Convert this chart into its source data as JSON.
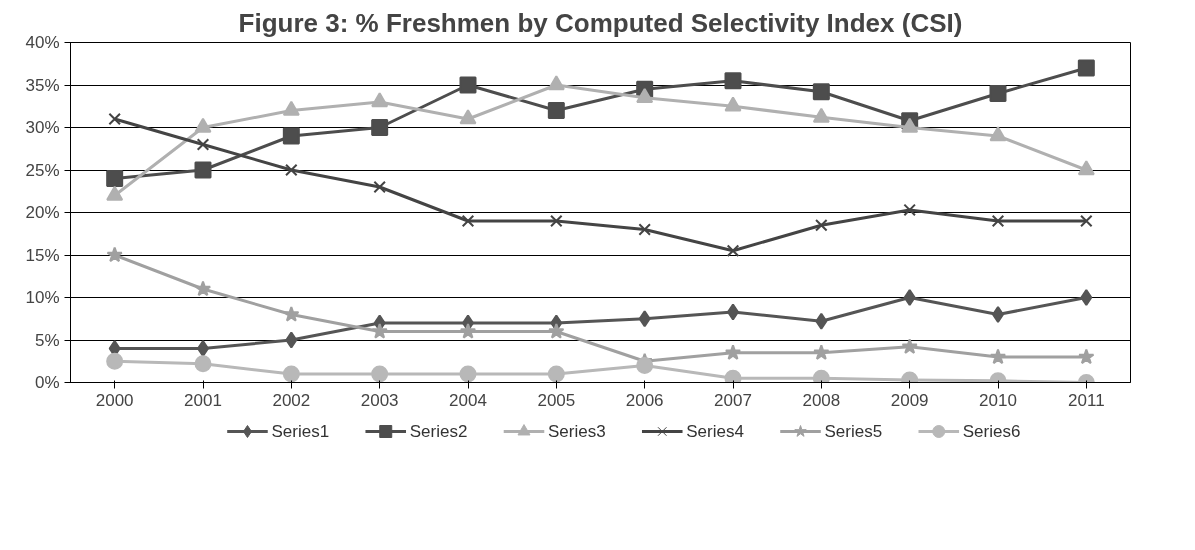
{
  "chart_data": {
    "type": "line",
    "title": "Figure 3: % Freshmen by Computed Selectivity Index (CSI)",
    "categories": [
      "2000",
      "2001",
      "2002",
      "2003",
      "2004",
      "2005",
      "2006",
      "2007",
      "2008",
      "2009",
      "2010",
      "2011"
    ],
    "ylim": [
      0,
      40
    ],
    "yticks": [
      {
        "value": 0,
        "label": "0%"
      },
      {
        "value": 5,
        "label": "5%"
      },
      {
        "value": 10,
        "label": "10%"
      },
      {
        "value": 15,
        "label": "15%"
      },
      {
        "value": 20,
        "label": "20%"
      },
      {
        "value": 25,
        "label": "25%"
      },
      {
        "value": 30,
        "label": "30%"
      },
      {
        "value": 35,
        "label": "35%"
      },
      {
        "value": 40,
        "label": "40%"
      }
    ],
    "grid": "y",
    "legend": "bottom",
    "line_style": "solid",
    "series": [
      {
        "name": "Series1",
        "color": "#555555",
        "marker": "diamond",
        "values": [
          4,
          4,
          5,
          7,
          7,
          7,
          7.5,
          8.3,
          7.2,
          10,
          8,
          10
        ]
      },
      {
        "name": "Series2",
        "color": "#4d4d4d",
        "marker": "square",
        "values": [
          24,
          25,
          29,
          30,
          35,
          32,
          34.5,
          35.5,
          34.2,
          30.8,
          34,
          37
        ]
      },
      {
        "name": "Series3",
        "color": "#b0b0b0",
        "marker": "triangle",
        "values": [
          22,
          30,
          32,
          33,
          31,
          35,
          33.5,
          32.5,
          31.2,
          30,
          29,
          25
        ]
      },
      {
        "name": "Series4",
        "color": "#444444",
        "marker": "cross",
        "values": [
          31,
          28,
          25,
          23,
          19,
          19,
          18,
          15.5,
          18.5,
          20.3,
          19,
          19
        ]
      },
      {
        "name": "Series5",
        "color": "#a0a0a0",
        "marker": "star",
        "values": [
          15,
          11,
          8,
          6,
          6,
          6,
          2.5,
          3.5,
          3.5,
          4.2,
          3,
          3
        ]
      },
      {
        "name": "Series6",
        "color": "#b8b8b8",
        "marker": "circle",
        "values": [
          2.5,
          2.2,
          1,
          1,
          1,
          1,
          2,
          0.5,
          0.5,
          0.3,
          0.2,
          0
        ]
      }
    ]
  }
}
